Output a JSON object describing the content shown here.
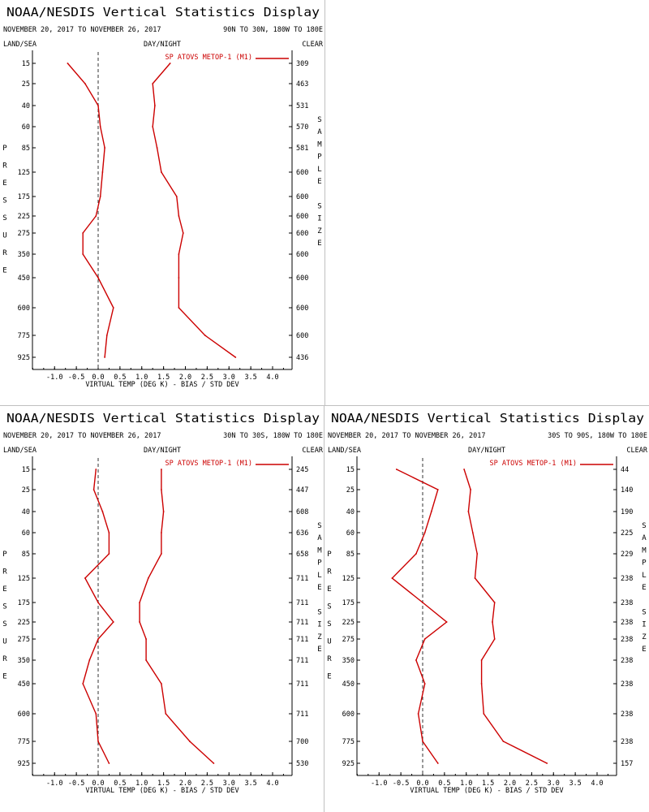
{
  "chart_data": [
    {
      "type": "line",
      "title": "NOAA/NESDIS Vertical Statistics Display",
      "date_range": "NOVEMBER 20, 2017 TO NOVEMBER 26, 2017",
      "region": "90N TO 30N, 180W TO 180E",
      "header_left": "LAND/SEA",
      "header_center": "DAY/NIGHT",
      "header_right": "CLEAR",
      "xlabel": "VIRTUAL TEMP (DEG K) - BIAS / STD DEV",
      "ylabel": "PRESSURE",
      "right_label": "SAMPLE SIZE",
      "xlim": [
        -1.5,
        4.5
      ],
      "xticks": [
        "-1.0",
        "-0.5",
        "0.0",
        "0.5",
        "1.0",
        "1.5",
        "2.0",
        "2.5",
        "3.0",
        "3.5",
        "4.0"
      ],
      "pressure_levels": [
        "15",
        "25",
        "40",
        "60",
        "85",
        "125",
        "175",
        "225",
        "275",
        "350",
        "450",
        "600",
        "775",
        "925"
      ],
      "sample_sizes": [
        "309",
        "463",
        "531",
        "570",
        "581",
        "600",
        "600",
        "600",
        "600",
        "600",
        "600",
        "600",
        "600",
        "436"
      ],
      "series": [
        {
          "name": "SP ATOVS METOP-1 (M1)",
          "role": "bias",
          "color": "#cc0000",
          "values": [
            -0.7,
            -0.3,
            0.0,
            0.05,
            0.15,
            0.1,
            0.05,
            -0.05,
            -0.35,
            -0.35,
            0.0,
            0.35,
            0.2,
            0.15
          ]
        },
        {
          "name": "",
          "role": "stddev",
          "color": "#cc0000",
          "values": [
            1.65,
            1.25,
            1.3,
            1.25,
            1.35,
            1.45,
            1.8,
            1.85,
            1.95,
            1.85,
            1.85,
            1.85,
            2.45,
            3.15
          ]
        }
      ]
    },
    {
      "type": "line",
      "title": "NOAA/NESDIS Vertical Statistics Display",
      "date_range": "NOVEMBER 20, 2017 TO NOVEMBER 26, 2017",
      "region": "30N TO 30S, 180W TO 180E",
      "header_left": "LAND/SEA",
      "header_center": "DAY/NIGHT",
      "header_right": "CLEAR",
      "xlabel": "VIRTUAL TEMP (DEG K) - BIAS / STD DEV",
      "ylabel": "PRESSURE",
      "right_label": "SAMPLE SIZE",
      "xlim": [
        -1.5,
        4.5
      ],
      "xticks": [
        "-1.0",
        "-0.5",
        "0.0",
        "0.5",
        "1.0",
        "1.5",
        "2.0",
        "2.5",
        "3.0",
        "3.5",
        "4.0"
      ],
      "pressure_levels": [
        "15",
        "25",
        "40",
        "60",
        "85",
        "125",
        "175",
        "225",
        "275",
        "350",
        "450",
        "600",
        "775",
        "925"
      ],
      "sample_sizes": [
        "245",
        "447",
        "608",
        "636",
        "658",
        "711",
        "711",
        "711",
        "711",
        "711",
        "711",
        "711",
        "700",
        "530"
      ],
      "series": [
        {
          "name": "SP ATOVS METOP-1 (M1)",
          "role": "bias",
          "color": "#cc0000",
          "values": [
            -0.05,
            -0.1,
            0.1,
            0.25,
            0.25,
            -0.3,
            0.0,
            0.35,
            0.0,
            -0.2,
            -0.35,
            -0.05,
            0.0,
            0.25
          ]
        },
        {
          "name": "",
          "role": "stddev",
          "color": "#cc0000",
          "values": [
            1.45,
            1.45,
            1.5,
            1.45,
            1.45,
            1.15,
            0.95,
            0.95,
            1.1,
            1.1,
            1.45,
            1.55,
            2.1,
            2.65
          ]
        }
      ]
    },
    {
      "type": "line",
      "title": "NOAA/NESDIS Vertical Statistics Display",
      "date_range": "NOVEMBER 20, 2017 TO NOVEMBER 26, 2017",
      "region": "30S TO 90S, 180W TO 180E",
      "header_left": "LAND/SEA",
      "header_center": "DAY/NIGHT",
      "header_right": "CLEAR",
      "xlabel": "VIRTUAL TEMP (DEG K) - BIAS / STD DEV",
      "ylabel": "PRESSURE",
      "right_label": "SAMPLE SIZE",
      "xlim": [
        -1.5,
        4.5
      ],
      "xticks": [
        "-1.0",
        "-0.5",
        "0.0",
        "0.5",
        "1.0",
        "1.5",
        "2.0",
        "2.5",
        "3.0",
        "3.5",
        "4.0"
      ],
      "pressure_levels": [
        "15",
        "25",
        "40",
        "60",
        "85",
        "125",
        "175",
        "225",
        "275",
        "350",
        "450",
        "600",
        "775",
        "925"
      ],
      "sample_sizes": [
        "44",
        "140",
        "190",
        "225",
        "229",
        "238",
        "238",
        "238",
        "238",
        "238",
        "238",
        "238",
        "238",
        "157"
      ],
      "series": [
        {
          "name": "SP ATOVS METOP-1 (M1)",
          "role": "bias",
          "color": "#cc0000",
          "values": [
            -0.6,
            0.35,
            0.2,
            0.05,
            -0.15,
            -0.7,
            0.0,
            0.55,
            0.05,
            -0.15,
            0.05,
            -0.1,
            0.0,
            0.35
          ]
        },
        {
          "name": "",
          "role": "stddev",
          "color": "#cc0000",
          "values": [
            0.95,
            1.1,
            1.05,
            1.15,
            1.25,
            1.2,
            1.65,
            1.6,
            1.65,
            1.35,
            1.35,
            1.4,
            1.85,
            2.85
          ]
        }
      ]
    }
  ]
}
